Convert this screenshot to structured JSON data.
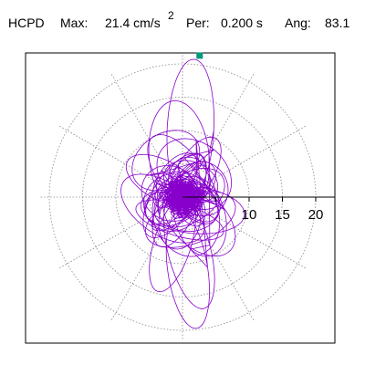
{
  "header": {
    "name": "HCPD",
    "max_label": "Max:",
    "max_value": "21.4 cm/s",
    "max_exponent": "2",
    "per_label": "Per:",
    "per_value": "0.200 s",
    "ang_label": "Ang:",
    "ang_value": "83.1"
  },
  "chart_data": {
    "type": "scatter",
    "subtype": "polar-trace",
    "radial_ticks": [
      "10",
      "15",
      "20"
    ],
    "radial_tick_values": [
      10,
      15,
      20
    ],
    "rings": [
      5,
      10,
      15,
      20
    ],
    "grid": true,
    "peak": {
      "magnitude": 21.4,
      "angle_deg": 83.1
    },
    "colors": {
      "trace": "#8800cc",
      "grid": "#888888",
      "peak_marker": "#00997a",
      "axis": "#000000"
    }
  }
}
